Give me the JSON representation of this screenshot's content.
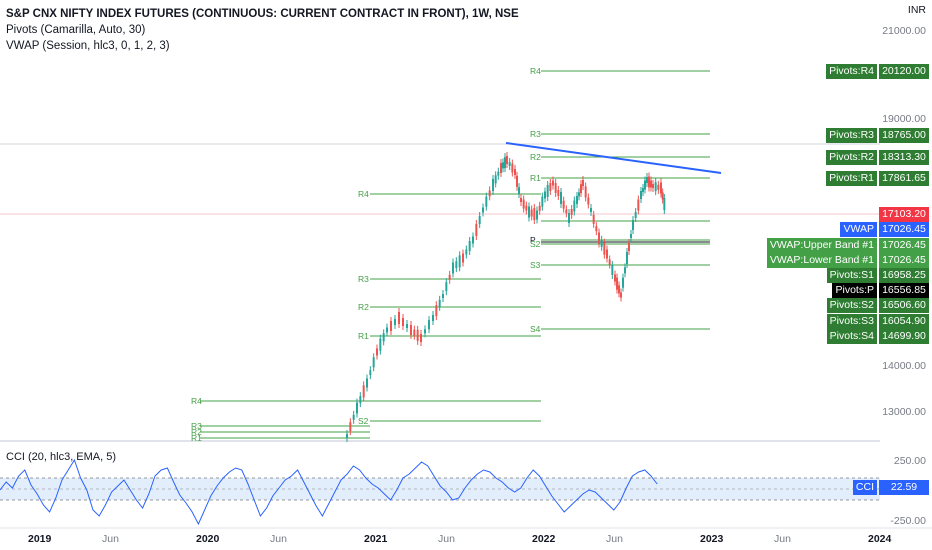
{
  "legend": {
    "title": "S&P CNX NIFTY INDEX FUTURES (CONTINUOUS: CURRENT CONTRACT IN FRONT), 1W, NSE",
    "pivots": "Pivots (Camarilla, Auto, 30)",
    "vwap": "VWAP (Session, hlc3, 0, 1, 2, 3)",
    "cci": "CCI (20, hlc3, EMA, 5)"
  },
  "price_axis": {
    "currency": "INR",
    "ticks": [
      "21000.00",
      "19000.00",
      "14000.00",
      "13000.00"
    ],
    "cci_ticks": [
      "250.00",
      "-250.00"
    ]
  },
  "pivot_labels": {
    "r4": "R4",
    "r3": "R3",
    "r2": "R2",
    "r1": "R1",
    "p": "P",
    "s1": "S1",
    "s2": "S2",
    "s3": "S3",
    "s4": "S4"
  },
  "price_boxes": [
    {
      "name": "Pivots:R4",
      "value": "20120.00",
      "color": "#2e7d32"
    },
    {
      "name": "Pivots:R3",
      "value": "18765.00",
      "color": "#2e7d32"
    },
    {
      "name": "Pivots:R2",
      "value": "18313.30",
      "color": "#2e7d32"
    },
    {
      "name": "Pivots:R1",
      "value": "17861.65",
      "color": "#2e7d32"
    },
    {
      "name": "",
      "value": "17103.20",
      "color": "#f23645"
    },
    {
      "name": "VWAP",
      "value": "17026.45",
      "color": "#2962ff"
    },
    {
      "name": "VWAP:Upper Band #1",
      "value": "17026.45",
      "color": "#43a047"
    },
    {
      "name": "VWAP:Lower Band #1",
      "value": "17026.45",
      "color": "#43a047"
    },
    {
      "name": "Pivots:S1",
      "value": "16958.25",
      "color": "#2e7d32"
    },
    {
      "name": "Pivots:P",
      "value": "16556.85",
      "color": "#000000"
    },
    {
      "name": "Pivots:S2",
      "value": "16506.60",
      "color": "#2e7d32"
    },
    {
      "name": "Pivots:S3",
      "value": "16054.90",
      "color": "#2e7d32"
    },
    {
      "name": "Pivots:S4",
      "value": "14699.90",
      "color": "#2e7d32"
    }
  ],
  "cci_box": {
    "name": "CCI",
    "value": "22.59",
    "color": "#2962ff"
  },
  "time_axis": [
    {
      "label": "2019",
      "bold": true
    },
    {
      "label": "Jun",
      "bold": false
    },
    {
      "label": "2020",
      "bold": true
    },
    {
      "label": "Jun",
      "bold": false
    },
    {
      "label": "2021",
      "bold": true
    },
    {
      "label": "Jun",
      "bold": false
    },
    {
      "label": "2022",
      "bold": true
    },
    {
      "label": "Jun",
      "bold": false
    },
    {
      "label": "2023",
      "bold": true
    },
    {
      "label": "Jun",
      "bold": false
    },
    {
      "label": "2024",
      "bold": true
    }
  ],
  "colors": {
    "up": "#26a69a",
    "down": "#ef5350",
    "trendline": "#2962ff",
    "pivot": "#43a047",
    "cci": "#2962ff"
  }
}
